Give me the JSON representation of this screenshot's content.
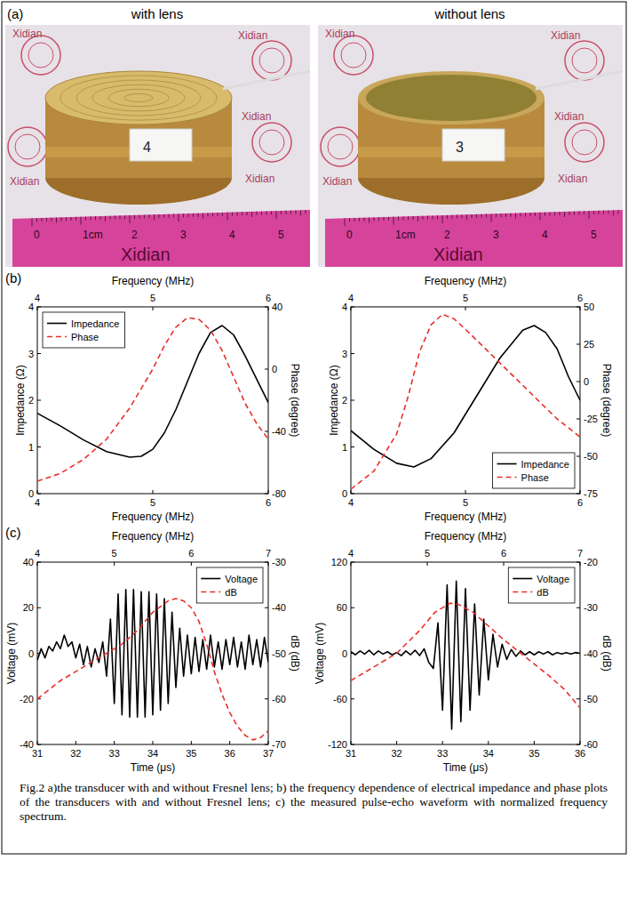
{
  "figure": {
    "panel_labels": [
      "(a)",
      "(b)",
      "(c)"
    ],
    "caption": "Fig.2 a)the transducer with and without Fresnel lens; b) the frequency dependence of electrical impedance and phase plots of the transducers with and without Fresnel lens; c) the measured pulse-echo waveform with normalized frequency spectrum.",
    "photos": [
      {
        "title": "with lens",
        "sticker": "4"
      },
      {
        "title": "without lens",
        "sticker": "3"
      }
    ],
    "watermark": "Xidian",
    "ruler_labels": [
      "0",
      "1cm",
      "2",
      "3",
      "4",
      "5"
    ]
  },
  "chart_data": [
    {
      "type": "line",
      "x_label": "Frequency (MHz)",
      "x2_label": "Frequency (MHz)",
      "xlim": [
        4,
        6
      ],
      "xticks": [
        4,
        5,
        6
      ],
      "x2lim": [
        4,
        6
      ],
      "x2ticks": [
        4,
        5,
        6
      ],
      "y_label": "Impedance (Ω)",
      "ylim": [
        0,
        4
      ],
      "yticks": [
        0,
        1,
        2,
        3,
        4
      ],
      "y2_label": "Phase (degree)",
      "y2lim": [
        -80,
        40
      ],
      "y2ticks": [
        -80,
        -40,
        0,
        40
      ],
      "legend": "upper left",
      "series": [
        {
          "name": "Impedance",
          "color": "#000000",
          "line_style": "solid",
          "x": [
            4,
            4.2,
            4.4,
            4.6,
            4.8,
            4.9,
            5,
            5.1,
            5.2,
            5.3,
            5.4,
            5.5,
            5.6,
            5.7,
            5.8,
            5.9,
            6
          ],
          "values": [
            1.72,
            1.45,
            1.15,
            0.9,
            0.78,
            0.8,
            0.95,
            1.3,
            1.8,
            2.4,
            3.0,
            3.45,
            3.6,
            3.4,
            2.95,
            2.45,
            1.95
          ]
        },
        {
          "name": "Phase",
          "color": "#e8302a",
          "line_style": "dashed",
          "axis": "y2",
          "x": [
            4,
            4.2,
            4.4,
            4.6,
            4.8,
            5,
            5.1,
            5.2,
            5.3,
            5.4,
            5.5,
            5.6,
            5.7,
            5.8,
            5.9,
            6
          ],
          "values": [
            -72,
            -67,
            -58,
            -45,
            -25,
            0,
            15,
            27,
            33,
            32,
            25,
            12,
            -5,
            -22,
            -35,
            -45
          ]
        }
      ]
    },
    {
      "type": "line",
      "x_label": "Frequency (MHz)",
      "x2_label": "Frequency (MHz)",
      "xlim": [
        4,
        6
      ],
      "xticks": [
        4,
        5,
        6
      ],
      "x2lim": [
        4,
        6
      ],
      "x2ticks": [
        4,
        5,
        6
      ],
      "y_label": "Impedance (Ω)",
      "ylim": [
        0,
        4
      ],
      "yticks": [
        0,
        1,
        2,
        3,
        4
      ],
      "y2_label": "Phase (degree)",
      "y2lim": [
        -75,
        50
      ],
      "y2ticks": [
        -75,
        -50,
        -25,
        0,
        25,
        50
      ],
      "legend": "lower right",
      "series": [
        {
          "name": "Impedance",
          "color": "#000000",
          "line_style": "solid",
          "x": [
            4,
            4.2,
            4.4,
            4.55,
            4.7,
            4.9,
            5.1,
            5.3,
            5.5,
            5.6,
            5.7,
            5.8,
            5.9,
            6
          ],
          "values": [
            1.35,
            0.95,
            0.65,
            0.57,
            0.75,
            1.3,
            2.1,
            2.9,
            3.5,
            3.6,
            3.45,
            3.1,
            2.5,
            2.0
          ]
        },
        {
          "name": "Phase",
          "color": "#e8302a",
          "line_style": "dashed",
          "axis": "y2",
          "x": [
            4,
            4.2,
            4.4,
            4.5,
            4.6,
            4.7,
            4.8,
            4.9,
            5,
            5.2,
            5.4,
            5.6,
            5.8,
            6
          ],
          "values": [
            -72,
            -60,
            -35,
            -10,
            20,
            38,
            45,
            42,
            35,
            20,
            5,
            -10,
            -25,
            -37
          ]
        }
      ]
    },
    {
      "type": "line",
      "x_label": "Time (μs)",
      "x2_label": "Frequency (MHz)",
      "xlim": [
        31,
        37
      ],
      "xticks": [
        31,
        32,
        33,
        34,
        35,
        36,
        37
      ],
      "x2lim": [
        4,
        7
      ],
      "x2ticks": [
        4,
        5,
        6,
        7
      ],
      "y_label": "Voltage (mV)",
      "ylim": [
        -40,
        40
      ],
      "yticks": [
        -40,
        -20,
        0,
        20,
        40
      ],
      "y2_label": "dB (dB)",
      "y2lim": [
        -70,
        -30
      ],
      "y2ticks": [
        -70,
        -60,
        -50,
        -40,
        -30
      ],
      "legend": "upper right",
      "series": [
        {
          "name": "Voltage",
          "color": "#000000",
          "line_style": "solid",
          "x": [
            31,
            31.1,
            31.2,
            31.3,
            31.4,
            31.5,
            31.6,
            31.7,
            31.8,
            31.9,
            32,
            32.1,
            32.2,
            32.3,
            32.4,
            32.5,
            32.6,
            32.7,
            32.8,
            32.9,
            33,
            33.1,
            33.2,
            33.3,
            33.4,
            33.5,
            33.6,
            33.7,
            33.8,
            33.9,
            34,
            34.1,
            34.2,
            34.3,
            34.4,
            34.5,
            34.6,
            34.7,
            34.8,
            34.9,
            35,
            35.1,
            35.2,
            35.3,
            35.4,
            35.5,
            35.6,
            35.7,
            35.8,
            35.9,
            36,
            36.1,
            36.2,
            36.3,
            36.4,
            36.5,
            36.6,
            36.7,
            36.8,
            36.9,
            37
          ],
          "values": [
            -3,
            2,
            -2,
            3,
            1,
            5,
            2,
            8,
            3,
            5,
            -2,
            4,
            -5,
            3,
            -6,
            2,
            -4,
            5,
            -10,
            15,
            -22,
            26,
            -27,
            28,
            -28,
            28,
            -28,
            27,
            -28,
            27,
            -27,
            26,
            -25,
            24,
            -22,
            18,
            -15,
            11,
            -10,
            8,
            -9,
            7,
            -8,
            6,
            -7,
            8,
            -6,
            5,
            -7,
            6,
            -5,
            7,
            -6,
            5,
            -7,
            8,
            -5,
            6,
            -6,
            7,
            -4
          ]
        },
        {
          "name": "dB",
          "color": "#e8302a",
          "line_style": "dashed",
          "axis": "y2",
          "x": [
            4,
            4.3,
            4.6,
            4.9,
            5.1,
            5.3,
            5.5,
            5.7,
            5.8,
            5.9,
            6,
            6.1,
            6.2,
            6.3,
            6.4,
            6.5,
            6.6,
            6.7,
            6.8,
            6.9,
            7
          ],
          "values": [
            -60,
            -56,
            -53,
            -50,
            -48,
            -45,
            -41,
            -38.5,
            -38,
            -38.5,
            -40,
            -43,
            -48,
            -54,
            -59,
            -63,
            -66,
            -68,
            -69,
            -68.5,
            -67
          ]
        }
      ]
    },
    {
      "type": "line",
      "x_label": "Time (μs)",
      "x2_label": "Frequency (MHz)",
      "xlim": [
        31,
        36
      ],
      "xticks": [
        31,
        32,
        33,
        34,
        35,
        36
      ],
      "x2lim": [
        4,
        7
      ],
      "x2ticks": [
        4,
        5,
        6,
        7
      ],
      "y_label": "Voltage (mV)",
      "ylim": [
        -120,
        120
      ],
      "yticks": [
        -120,
        -60,
        0,
        60,
        120
      ],
      "y2_label": "dB (dB)",
      "y2lim": [
        -60,
        -20
      ],
      "y2ticks": [
        -60,
        -50,
        -40,
        -30,
        -20
      ],
      "legend": "upper right",
      "series": [
        {
          "name": "Voltage",
          "color": "#000000",
          "line_style": "solid",
          "x": [
            31,
            31.1,
            31.2,
            31.3,
            31.4,
            31.5,
            31.6,
            31.7,
            31.8,
            31.9,
            32,
            32.1,
            32.2,
            32.3,
            32.4,
            32.5,
            32.6,
            32.7,
            32.8,
            32.9,
            33,
            33.1,
            33.2,
            33.3,
            33.4,
            33.5,
            33.6,
            33.7,
            33.8,
            33.9,
            34,
            34.1,
            34.2,
            34.3,
            34.4,
            34.5,
            34.6,
            34.7,
            34.8,
            34.9,
            35,
            35.1,
            35.2,
            35.3,
            35.4,
            35.5,
            35.6,
            35.7,
            35.8,
            35.9,
            36
          ],
          "values": [
            2,
            -2,
            3,
            -1,
            4,
            -2,
            3,
            -1,
            2,
            -2,
            1,
            -3,
            3,
            -2,
            4,
            -3,
            6,
            -12,
            -20,
            40,
            -75,
            90,
            -100,
            95,
            -90,
            85,
            -75,
            65,
            -55,
            45,
            -35,
            25,
            -18,
            12,
            -8,
            5,
            -4,
            3,
            -2,
            2,
            -2,
            2,
            -1,
            2,
            -2,
            1,
            -1,
            1,
            -1,
            1,
            0
          ]
        },
        {
          "name": "dB",
          "color": "#e8302a",
          "line_style": "dashed",
          "axis": "y2",
          "x": [
            4,
            4.3,
            4.6,
            4.9,
            5.1,
            5.3,
            5.4,
            5.6,
            5.8,
            6,
            6.3,
            6.6,
            6.8,
            7
          ],
          "values": [
            -46,
            -43,
            -40,
            -35,
            -31,
            -29,
            -29.2,
            -31,
            -34,
            -37,
            -41,
            -45,
            -48,
            -52
          ]
        }
      ]
    }
  ]
}
